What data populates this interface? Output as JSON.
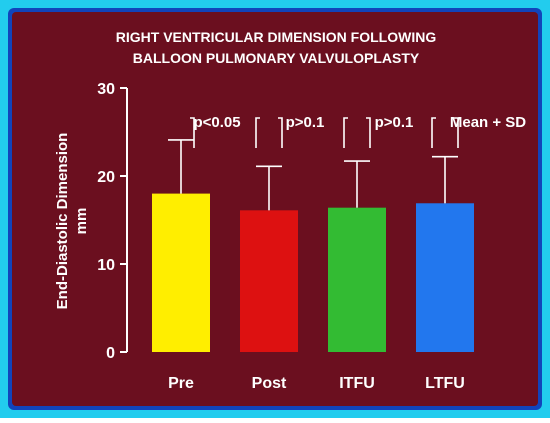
{
  "chart_data": {
    "type": "bar",
    "title_lines": [
      "RIGHT VENTRICULAR DIMENSION FOLLOWING",
      "BALLOON PULMONARY VALVULOPLASTY"
    ],
    "ylabel_lines": [
      "End-Diastolic Dimension",
      "mm"
    ],
    "xlabel": "",
    "categories": [
      "Pre",
      "Post",
      "ITFU",
      "LTFU"
    ],
    "values": [
      18.0,
      16.1,
      16.4,
      16.9
    ],
    "sd_upper": [
      24.1,
      21.1,
      21.7,
      22.2
    ],
    "colors": [
      "#ffee00",
      "#dd1111",
      "#33bb33",
      "#2277ee"
    ],
    "ylim": [
      0,
      30
    ],
    "yticks": [
      0,
      10,
      20,
      30
    ],
    "grid": false,
    "annotations": [
      "p<0.05",
      "p>0.1",
      "p>0.1",
      "Mean + SD"
    ]
  },
  "colors": {
    "frame_outer": "#22ccee",
    "frame_inner": "#1144bb",
    "background": "#6b0f1f",
    "text": "#ffffff"
  }
}
